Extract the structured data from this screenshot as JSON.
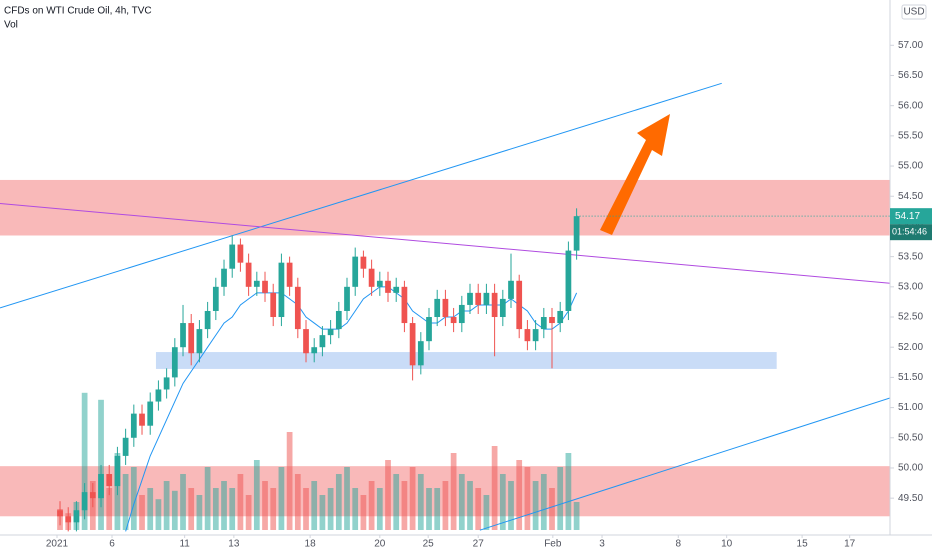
{
  "chart_data": {
    "type": "candlestick",
    "title": "CFDs on WTI Crude Oil, 4h, TVC",
    "subtitle": "Vol",
    "currency": "USD",
    "countdown": "01:54:46",
    "categories": [
      null,
      null,
      null,
      null,
      null,
      null,
      null,
      null,
      null,
      null,
      null,
      null,
      null,
      null,
      null,
      null,
      null,
      null,
      null,
      null,
      null,
      null,
      null,
      null,
      null,
      null,
      null,
      null,
      null,
      null,
      null,
      null,
      null,
      null,
      null,
      null,
      null,
      null,
      null,
      null,
      null,
      null,
      null,
      null,
      null,
      null,
      null,
      null,
      null,
      null,
      null,
      null,
      null,
      null,
      null,
      null,
      null,
      null,
      null,
      null,
      null,
      null,
      null,
      null
    ],
    "open": [
      49.3,
      49.2,
      49.1,
      49.3,
      49.6,
      49.5,
      49.9,
      49.7,
      50.2,
      50.5,
      50.9,
      50.7,
      51.1,
      51.3,
      51.5,
      52.0,
      52.4,
      51.9,
      52.3,
      52.6,
      53.0,
      53.3,
      53.7,
      53.4,
      53.0,
      53.1,
      52.9,
      52.5,
      53.4,
      53.0,
      52.3,
      51.9,
      52.0,
      52.2,
      52.3,
      52.6,
      53.0,
      53.5,
      53.3,
      53.0,
      53.1,
      52.9,
      53.0,
      52.4,
      51.7,
      52.1,
      52.5,
      52.8,
      52.5,
      52.4,
      52.7,
      52.9,
      52.7,
      52.9,
      52.5,
      52.8,
      53.1,
      52.3,
      52.1,
      52.3,
      52.5,
      52.4,
      52.6,
      53.6
    ],
    "high": [
      49.45,
      49.35,
      49.45,
      49.75,
      49.75,
      50.05,
      50.05,
      50.35,
      50.65,
      51.05,
      51.05,
      51.25,
      51.45,
      51.65,
      52.15,
      52.7,
      52.55,
      52.45,
      52.75,
      53.15,
      53.45,
      53.85,
      53.8,
      53.55,
      53.25,
      53.25,
      53.05,
      53.55,
      53.5,
      53.15,
      52.45,
      52.15,
      52.35,
      52.45,
      52.75,
      53.15,
      53.65,
      53.6,
      53.45,
      53.25,
      53.25,
      53.15,
      53.1,
      52.5,
      52.25,
      52.65,
      52.95,
      52.95,
      52.65,
      52.85,
      53.05,
      53.05,
      53.05,
      53.05,
      52.95,
      53.55,
      53.2,
      52.45,
      52.45,
      52.65,
      52.65,
      52.75,
      53.75,
      54.3
    ],
    "low": [
      49.05,
      48.95,
      48.95,
      49.15,
      49.35,
      49.35,
      49.55,
      49.55,
      50.05,
      50.35,
      50.55,
      50.55,
      50.95,
      51.15,
      51.35,
      51.85,
      51.7,
      51.75,
      52.15,
      52.45,
      52.85,
      53.15,
      53.25,
      52.85,
      52.85,
      52.75,
      52.35,
      52.35,
      52.85,
      52.15,
      51.75,
      51.75,
      51.85,
      52.05,
      52.15,
      52.45,
      52.85,
      53.15,
      52.85,
      52.85,
      52.75,
      52.75,
      52.25,
      51.45,
      51.55,
      51.95,
      52.35,
      52.35,
      52.25,
      52.25,
      52.55,
      52.55,
      52.55,
      51.85,
      52.35,
      52.65,
      52.15,
      51.95,
      51.95,
      52.15,
      51.65,
      52.25,
      52.45,
      53.45
    ],
    "close": [
      49.2,
      49.1,
      49.3,
      49.6,
      49.5,
      49.9,
      49.7,
      50.2,
      50.5,
      50.9,
      50.7,
      51.1,
      51.3,
      51.5,
      52.0,
      52.4,
      51.9,
      52.3,
      52.6,
      53.0,
      53.3,
      53.7,
      53.4,
      53.0,
      53.1,
      52.9,
      52.5,
      53.4,
      53.0,
      52.3,
      51.9,
      52.0,
      52.2,
      52.3,
      52.6,
      53.0,
      53.5,
      53.3,
      53.0,
      53.1,
      52.9,
      53.0,
      52.4,
      51.7,
      52.1,
      52.5,
      52.8,
      52.5,
      52.4,
      52.7,
      52.9,
      52.7,
      52.9,
      52.5,
      52.8,
      53.1,
      52.3,
      52.1,
      52.3,
      52.5,
      52.4,
      52.6,
      53.6,
      54.17
    ],
    "volume": [
      15,
      12,
      20,
      98,
      35,
      93,
      30,
      55,
      40,
      45,
      25,
      30,
      22,
      35,
      28,
      40,
      30,
      25,
      45,
      30,
      35,
      30,
      40,
      25,
      50,
      35,
      30,
      45,
      70,
      40,
      30,
      35,
      25,
      30,
      40,
      45,
      30,
      25,
      35,
      30,
      50,
      40,
      35,
      45,
      40,
      30,
      30,
      35,
      55,
      40,
      35,
      30,
      25,
      60,
      40,
      35,
      50,
      45,
      35,
      40,
      30,
      45,
      55,
      20
    ],
    "ma": {
      "color": "#2196f3",
      "values": [
        null,
        null,
        null,
        null,
        null,
        null,
        null,
        null,
        48.95,
        49.4,
        49.8,
        50.2,
        50.5,
        50.8,
        51.1,
        51.4,
        51.6,
        51.8,
        52.0,
        52.2,
        52.4,
        52.5,
        52.7,
        52.8,
        52.9,
        52.9,
        52.9,
        52.9,
        52.8,
        52.7,
        52.5,
        52.4,
        52.3,
        52.3,
        52.3,
        52.4,
        52.6,
        52.8,
        52.9,
        53.0,
        53.0,
        52.9,
        52.8,
        52.6,
        52.5,
        52.4,
        52.4,
        52.5,
        52.5,
        52.6,
        52.6,
        52.7,
        52.7,
        52.7,
        52.7,
        52.8,
        52.7,
        52.6,
        52.4,
        52.3,
        52.3,
        52.4,
        52.6,
        52.9
      ]
    },
    "up_color": "#26a69a",
    "down_color": "#ef5350",
    "xlim": [
      -7.32,
      101.22
    ],
    "ylim": [
      48.89,
      57.75
    ],
    "xticks": [
      {
        "value": -0.37,
        "label": "2021"
      },
      {
        "value": 6.34,
        "label": "6"
      },
      {
        "value": 15.2,
        "label": "11"
      },
      {
        "value": 21.2,
        "label": "13"
      },
      {
        "value": 30.5,
        "label": "18"
      },
      {
        "value": 39.0,
        "label": "20"
      },
      {
        "value": 44.9,
        "label": "25"
      },
      {
        "value": 51.0,
        "label": "27"
      },
      {
        "value": 60.1,
        "label": "Feb"
      },
      {
        "value": 66.1,
        "label": "3"
      },
      {
        "value": 75.4,
        "label": "8"
      },
      {
        "value": 81.3,
        "label": "10"
      },
      {
        "value": 90.5,
        "label": "15"
      },
      {
        "value": 96.3,
        "label": "17"
      }
    ],
    "yticks": [
      {
        "value": 49.5,
        "label": "49.50"
      },
      {
        "value": 50,
        "label": "50.00"
      },
      {
        "value": 50.5,
        "label": "50.50"
      },
      {
        "value": 51,
        "label": "51.00"
      },
      {
        "value": 51.5,
        "label": "51.50"
      },
      {
        "value": 52,
        "label": "52.00"
      },
      {
        "value": 52.5,
        "label": "52.50"
      },
      {
        "value": 53,
        "label": "53.00"
      },
      {
        "value": 53.5,
        "label": "53.50"
      },
      {
        "value": 54,
        "label": "54.00"
      },
      {
        "value": 54.5,
        "label": "54.50"
      },
      {
        "value": 55,
        "label": "55.00"
      },
      {
        "value": 55.5,
        "label": "55.50"
      },
      {
        "value": 56,
        "label": "56.00"
      },
      {
        "value": 56.5,
        "label": "56.50"
      },
      {
        "value": 57,
        "label": "57.00"
      }
    ],
    "zones": [
      {
        "x": [
          -7.32,
          101.22
        ],
        "y": [
          53.85,
          54.77
        ],
        "color": "#f7a8a8"
      },
      {
        "x": [
          11.7,
          87.4
        ],
        "y": [
          51.64,
          51.92
        ],
        "color": "#bcd3f5"
      },
      {
        "x": [
          -7.32,
          101.22
        ],
        "y": [
          49.2,
          50.03
        ],
        "color": "#f7a8a8"
      }
    ],
    "lines": [
      {
        "x": [
          -7.32,
          80.7
        ],
        "y": [
          52.65,
          56.37
        ],
        "color": "#2196f3"
      },
      {
        "x": [
          -7.32,
          101.22
        ],
        "y": [
          54.38,
          53.06
        ],
        "color": "#b04be0"
      },
      {
        "x": [
          51.2,
          101.22
        ],
        "y": [
          48.97,
          51.16
        ],
        "color": "#2196f3"
      }
    ]
  }
}
